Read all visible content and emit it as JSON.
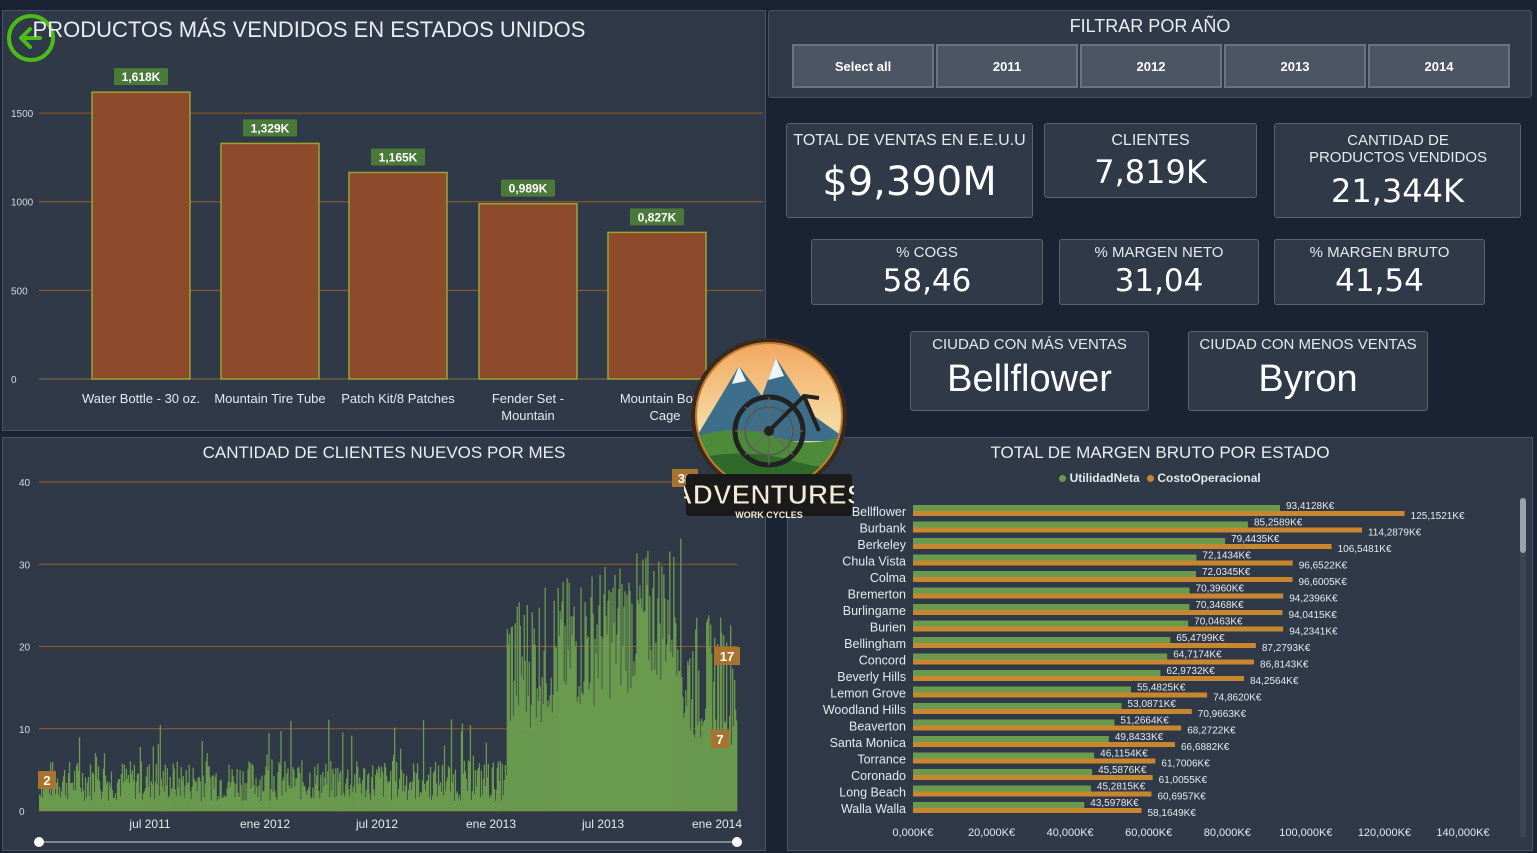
{
  "top_chart": {
    "title": "PRODUCTOS MÁS VENDIDOS EN ESTADOS UNIDOS",
    "chart_data": {
      "type": "bar",
      "categories": [
        [
          "Water Bottle - 30 oz."
        ],
        [
          "Mountain Tire Tube"
        ],
        [
          "Patch Kit/8 Patches"
        ],
        [
          "Fender Set -",
          "Mountain"
        ],
        [
          "Mountain Bottle",
          "Cage"
        ]
      ],
      "values": [
        1618,
        1329,
        1165,
        989,
        827
      ],
      "labels": [
        "1,618K",
        "1,329K",
        "1,165K",
        "0,989K",
        "0,827K"
      ],
      "yticks": [
        0,
        500,
        1000,
        1500
      ],
      "ylim": [
        0,
        1760
      ]
    }
  },
  "filter": {
    "title": "FILTRAR POR AÑO",
    "buttons": [
      "Select all",
      "2011",
      "2012",
      "2013",
      "2014"
    ]
  },
  "kpis": {
    "ventas": {
      "label": "TOTAL DE VENTAS EN E.E.U.U",
      "value": "$9,390M"
    },
    "clientes": {
      "label": "CLIENTES",
      "value": "7,819K"
    },
    "productos": {
      "label": "CANTIDAD DE PRODUCTOS VENDIDOS",
      "value": "21,344K"
    },
    "cogs": {
      "label": "% COGS",
      "value": "58,46"
    },
    "neto": {
      "label": "% MARGEN NETO",
      "value": "31,04"
    },
    "bruto": {
      "label": "% MARGEN BRUTO",
      "value": "41,54"
    },
    "mas": {
      "label": "CIUDAD CON MÁS VENTAS",
      "value": "Bellflower"
    },
    "menos": {
      "label": "CIUDAD CON MENOS VENTAS",
      "value": "Byron"
    }
  },
  "logo": {
    "text": "ADVENTURES",
    "sub": "WORK CYCLES"
  },
  "clients_chart": {
    "title": "CANTIDAD DE CLIENTES NUEVOS POR MES",
    "chart_data": {
      "type": "bar",
      "yticks": [
        0,
        10,
        20,
        30,
        40
      ],
      "ylim": [
        0,
        40
      ],
      "xticks": [
        "jul 2011",
        "ene 2012",
        "jul 2012",
        "ene 2013",
        "jul 2013",
        "ene 2014"
      ],
      "callouts": [
        {
          "label": "2",
          "value": 2
        },
        {
          "label": "39",
          "value": 39
        },
        {
          "label": "17",
          "value": 17
        },
        {
          "label": "7",
          "value": 7
        }
      ],
      "color": "#6a9a4e"
    }
  },
  "state_chart": {
    "title": "TOTAL DE MARGEN BRUTO POR ESTADO",
    "legend": [
      {
        "name": "UtilidadNeta",
        "color": "#6a9a4e"
      },
      {
        "name": "CostoOperacional",
        "color": "#c8862e"
      }
    ],
    "chart_data": {
      "type": "bar",
      "orientation": "horizontal",
      "xlim": [
        0,
        140000
      ],
      "xticks": [
        "0,000K€",
        "20,000K€",
        "40,000K€",
        "60,000K€",
        "80,000K€",
        "100,000K€",
        "120,000K€",
        "140,000K€"
      ],
      "rows": [
        {
          "city": "Bellflower",
          "neta": 93412.8,
          "neta_label": "93,4128K€",
          "costo": 125152.1,
          "costo_label": "125,1521K€"
        },
        {
          "city": "Burbank",
          "neta": 85258.9,
          "neta_label": "85,2589K€",
          "costo": 114287.9,
          "costo_label": "114,2879K€"
        },
        {
          "city": "Berkeley",
          "neta": 79443.5,
          "neta_label": "79,4435K€",
          "costo": 106548.1,
          "costo_label": "106,5481K€"
        },
        {
          "city": "Chula Vista",
          "neta": 72143.4,
          "neta_label": "72,1434K€",
          "costo": 96652.2,
          "costo_label": "96,6522K€"
        },
        {
          "city": "Colma",
          "neta": 72034.5,
          "neta_label": "72,0345K€",
          "costo": 96600.5,
          "costo_label": "96,6005K€"
        },
        {
          "city": "Bremerton",
          "neta": 70396.0,
          "neta_label": "70,3960K€",
          "costo": 94239.6,
          "costo_label": "94,2396K€"
        },
        {
          "city": "Burlingame",
          "neta": 70346.8,
          "neta_label": "70,3468K€",
          "costo": 94041.5,
          "costo_label": "94,0415K€"
        },
        {
          "city": "Burien",
          "neta": 70046.3,
          "neta_label": "70,0463K€",
          "costo": 94234.1,
          "costo_label": "94,2341K€"
        },
        {
          "city": "Bellingham",
          "neta": 65479.9,
          "neta_label": "65,4799K€",
          "costo": 87279.3,
          "costo_label": "87,2793K€"
        },
        {
          "city": "Concord",
          "neta": 64717.4,
          "neta_label": "64,7174K€",
          "costo": 86814.3,
          "costo_label": "86,8143K€"
        },
        {
          "city": "Beverly Hills",
          "neta": 62973.2,
          "neta_label": "62,9732K€",
          "costo": 84256.4,
          "costo_label": "84,2564K€"
        },
        {
          "city": "Lemon Grove",
          "neta": 55482.5,
          "neta_label": "55,4825K€",
          "costo": 74862.0,
          "costo_label": "74,8620K€"
        },
        {
          "city": "Woodland Hills",
          "neta": 53087.1,
          "neta_label": "53,0871K€",
          "costo": 70966.3,
          "costo_label": "70,9663K€"
        },
        {
          "city": "Beaverton",
          "neta": 51266.4,
          "neta_label": "51,2664K€",
          "costo": 68272.2,
          "costo_label": "68,2722K€"
        },
        {
          "city": "Santa Monica",
          "neta": 49843.3,
          "neta_label": "49,8433K€",
          "costo": 66688.2,
          "costo_label": "66,6882K€"
        },
        {
          "city": "Torrance",
          "neta": 46115.4,
          "neta_label": "46,1154K€",
          "costo": 61700.6,
          "costo_label": "61,7006K€"
        },
        {
          "city": "Coronado",
          "neta": 45587.6,
          "neta_label": "45,5876K€",
          "costo": 61005.5,
          "costo_label": "61,0055K€"
        },
        {
          "city": "Long Beach",
          "neta": 45281.5,
          "neta_label": "45,2815K€",
          "costo": 60695.7,
          "costo_label": "60,6957K€"
        },
        {
          "city": "Walla Walla",
          "neta": 43597.8,
          "neta_label": "43,5978K€",
          "costo": 58164.9,
          "costo_label": "58,1649K€"
        }
      ]
    }
  }
}
